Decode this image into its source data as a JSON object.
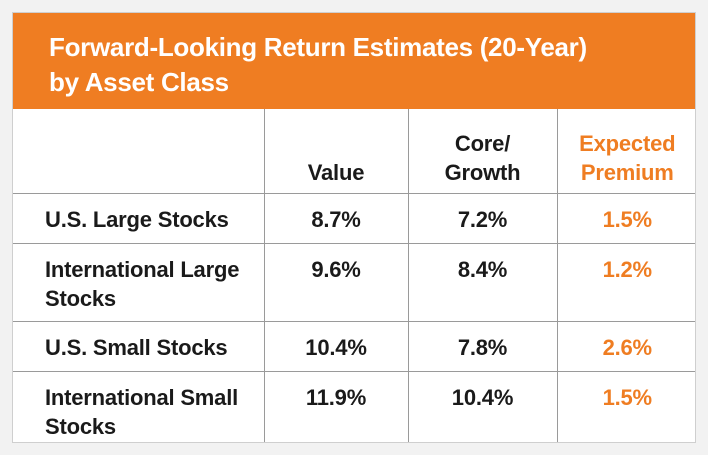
{
  "title": {
    "line1": "Forward-Looking Return Estimates (20-Year)",
    "line2": "by Asset Class"
  },
  "columns": {
    "label": "",
    "value": "Value",
    "core_line1": "Core/",
    "core_line2": "Growth",
    "premium_line1": "Expected",
    "premium_line2": "Premium"
  },
  "rows": [
    {
      "label_line1": "U.S. Large Stocks",
      "label_line2": "",
      "value": "8.7%",
      "core": "7.2%",
      "premium": "1.5%"
    },
    {
      "label_line1": "International Large",
      "label_line2": "Stocks",
      "value": "9.6%",
      "core": "8.4%",
      "premium": "1.2%"
    },
    {
      "label_line1": "U.S. Small Stocks",
      "label_line2": "",
      "value": "10.4%",
      "core": "7.8%",
      "premium": "2.6%"
    },
    {
      "label_line1": "International Small",
      "label_line2": "Stocks",
      "value": "11.9%",
      "core": "10.4%",
      "premium": "1.5%"
    }
  ],
  "colors": {
    "accent": "#ef7d22",
    "text": "#1a1a1a",
    "border": "#9a9a9a"
  }
}
